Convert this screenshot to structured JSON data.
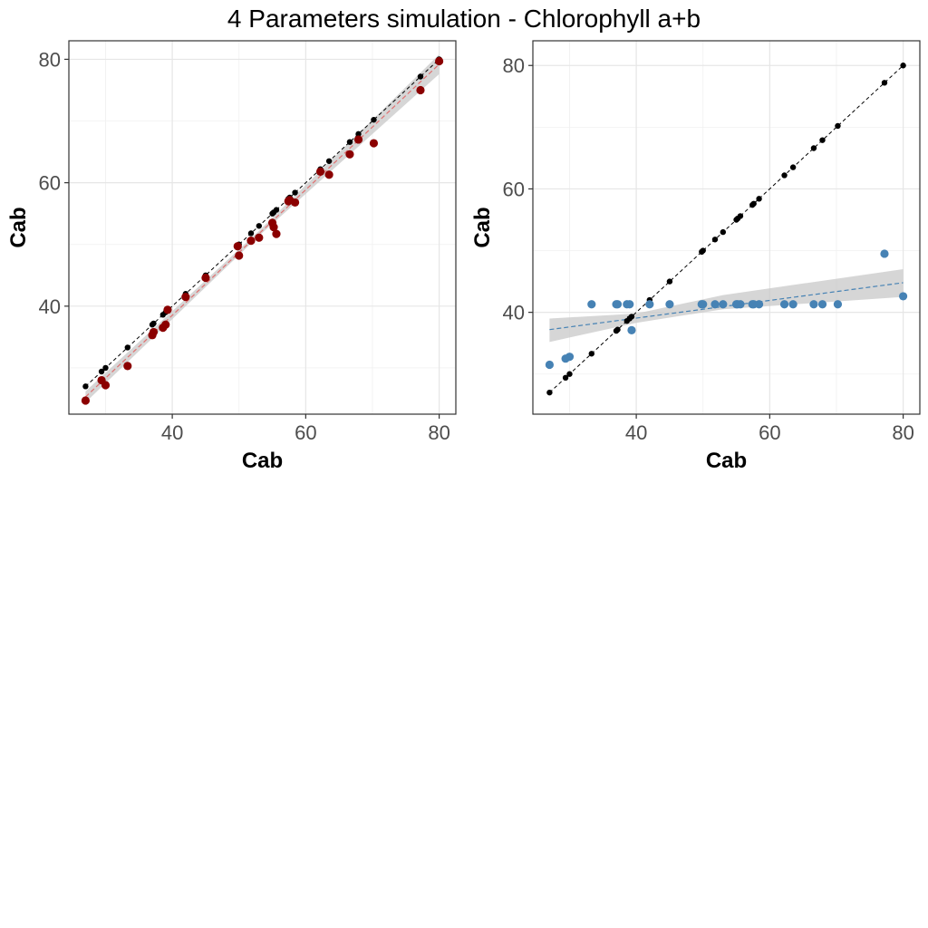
{
  "title": "4 Parameters simulation - Chlorophyll a+b",
  "chart_data": [
    {
      "type": "scatter",
      "xlabel": "Cab",
      "ylabel": "Cab",
      "xlim": [
        24.5,
        82.5
      ],
      "ylim": [
        22.5,
        83
      ],
      "xticks": [
        40,
        60,
        80
      ],
      "yticks": [
        40,
        60,
        80
      ],
      "grid": true,
      "legend": "none",
      "colors": {
        "reference": "#000000",
        "estimate": "#8b0000",
        "ribbon": "#c8c8c8",
        "fit": "#e07070"
      },
      "x": [
        27.0,
        29.4,
        30.0,
        33.3,
        37.0,
        37.2,
        38.6,
        39.0,
        39.3,
        42.0,
        45.0,
        49.8,
        50.0,
        51.8,
        53.0,
        55.0,
        55.2,
        55.6,
        57.4,
        57.6,
        58.4,
        62.2,
        63.5,
        66.6,
        67.9,
        70.2,
        77.2,
        80.0
      ],
      "reference": [
        27.0,
        29.4,
        30.0,
        33.3,
        37.0,
        37.2,
        38.6,
        39.0,
        39.3,
        42.0,
        45.0,
        49.8,
        50.0,
        51.8,
        53.0,
        55.0,
        55.2,
        55.6,
        57.4,
        57.6,
        58.4,
        62.2,
        63.5,
        66.6,
        67.9,
        70.2,
        77.2,
        80.0
      ],
      "estimate": [
        24.7,
        28.0,
        27.2,
        30.3,
        35.3,
        35.8,
        36.5,
        37.0,
        39.4,
        41.5,
        44.6,
        49.7,
        48.2,
        50.6,
        51.1,
        53.5,
        52.8,
        51.7,
        57.0,
        57.2,
        56.8,
        61.8,
        61.3,
        64.6,
        67.0,
        66.4,
        75.0,
        79.7
      ],
      "fit": {
        "x": [
          27.0,
          80.0
        ],
        "y": [
          25.3,
          79.2
        ]
      },
      "ribbon": {
        "x": [
          27.0,
          53.0,
          80.0
        ],
        "lower": [
          24.4,
          51.4,
          77.6
        ],
        "upper": [
          26.2,
          52.2,
          80.8
        ]
      }
    },
    {
      "type": "scatter",
      "xlabel": "Cab",
      "ylabel": "Cab",
      "xlim": [
        24.5,
        82.5
      ],
      "ylim": [
        23.5,
        84
      ],
      "xticks": [
        40,
        60,
        80
      ],
      "yticks": [
        40,
        60,
        80
      ],
      "grid": true,
      "legend": "none",
      "colors": {
        "reference": "#000000",
        "estimate": "#4682b4",
        "ribbon": "#c8c8c8",
        "fit": "#4682b4"
      },
      "x": [
        27.0,
        29.4,
        30.0,
        33.3,
        37.0,
        37.2,
        38.6,
        39.0,
        39.3,
        42.0,
        45.0,
        49.8,
        50.0,
        51.8,
        53.0,
        55.0,
        55.2,
        55.6,
        57.4,
        57.6,
        58.4,
        62.2,
        63.5,
        66.6,
        67.9,
        70.2,
        77.2,
        80.0
      ],
      "reference": [
        27.0,
        29.4,
        30.0,
        33.3,
        37.0,
        37.2,
        38.6,
        39.0,
        39.3,
        42.0,
        45.0,
        49.8,
        50.0,
        51.8,
        53.0,
        55.0,
        55.2,
        55.6,
        57.4,
        57.6,
        58.4,
        62.2,
        63.5,
        66.6,
        67.9,
        70.2,
        77.2,
        80.0
      ],
      "estimate": [
        31.5,
        32.5,
        32.8,
        41.3,
        41.3,
        41.3,
        41.3,
        41.3,
        37.1,
        41.3,
        41.3,
        41.3,
        41.3,
        41.3,
        41.3,
        41.3,
        41.3,
        41.3,
        41.3,
        41.3,
        41.3,
        41.3,
        41.3,
        41.3,
        41.3,
        41.3,
        49.5,
        42.6
      ],
      "fit": {
        "x": [
          27.0,
          80.0
        ],
        "y": [
          37.2,
          44.8
        ]
      },
      "ribbon": {
        "x": [
          27.0,
          40.0,
          53.0,
          80.0
        ],
        "lower": [
          35.2,
          38.3,
          40.5,
          42.5
        ],
        "upper": [
          39.0,
          39.8,
          42.8,
          47.0
        ]
      }
    }
  ]
}
